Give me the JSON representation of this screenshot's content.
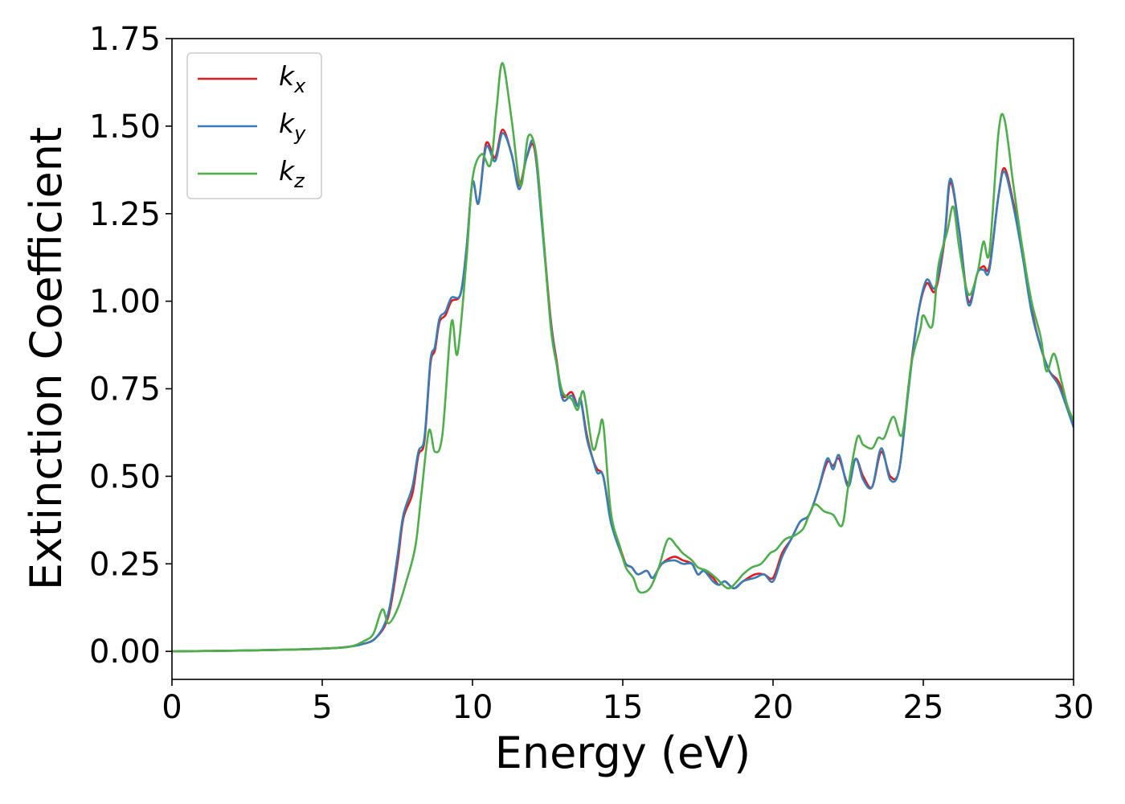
{
  "chart_data": {
    "type": "line",
    "xlabel": "Energy (eV)",
    "ylabel": "Extinction Coefficient",
    "xlim": [
      0,
      30
    ],
    "ylim": [
      -0.08,
      1.75
    ],
    "xticks": [
      0,
      5,
      10,
      15,
      20,
      25,
      30
    ],
    "xtick_labels": [
      "0",
      "5",
      "10",
      "15",
      "20",
      "25",
      "30"
    ],
    "yticks": [
      0.0,
      0.25,
      0.5,
      0.75,
      1.0,
      1.25,
      1.5,
      1.75
    ],
    "ytick_labels": [
      "0.00",
      "0.25",
      "0.50",
      "0.75",
      "1.00",
      "1.25",
      "1.50",
      "1.75"
    ],
    "grid": false,
    "legend_position": "top-left",
    "series": [
      {
        "name": "k_x",
        "label_base": "k",
        "label_sub": "x",
        "color": "#e41a1c",
        "points": [
          [
            0,
            0.0
          ],
          [
            2,
            0.002
          ],
          [
            4,
            0.005
          ],
          [
            5.5,
            0.01
          ],
          [
            6.3,
            0.02
          ],
          [
            6.8,
            0.04
          ],
          [
            7.2,
            0.1
          ],
          [
            7.5,
            0.25
          ],
          [
            7.7,
            0.38
          ],
          [
            8.0,
            0.45
          ],
          [
            8.2,
            0.56
          ],
          [
            8.4,
            0.6
          ],
          [
            8.6,
            0.82
          ],
          [
            8.75,
            0.86
          ],
          [
            8.9,
            0.94
          ],
          [
            9.1,
            0.96
          ],
          [
            9.3,
            1.0
          ],
          [
            9.6,
            1.02
          ],
          [
            9.8,
            1.15
          ],
          [
            10.0,
            1.34
          ],
          [
            10.2,
            1.28
          ],
          [
            10.45,
            1.45
          ],
          [
            10.75,
            1.41
          ],
          [
            11.0,
            1.49
          ],
          [
            11.3,
            1.42
          ],
          [
            11.55,
            1.33
          ],
          [
            11.8,
            1.41
          ],
          [
            12.05,
            1.44
          ],
          [
            12.3,
            1.24
          ],
          [
            12.6,
            0.95
          ],
          [
            12.8,
            0.83
          ],
          [
            13.0,
            0.73
          ],
          [
            13.3,
            0.74
          ],
          [
            13.5,
            0.7
          ],
          [
            13.6,
            0.72
          ],
          [
            13.8,
            0.62
          ],
          [
            14.0,
            0.55
          ],
          [
            14.15,
            0.52
          ],
          [
            14.35,
            0.5
          ],
          [
            14.6,
            0.38
          ],
          [
            14.9,
            0.3
          ],
          [
            15.1,
            0.25
          ],
          [
            15.3,
            0.24
          ],
          [
            15.5,
            0.22
          ],
          [
            15.8,
            0.23
          ],
          [
            16.0,
            0.21
          ],
          [
            16.3,
            0.25
          ],
          [
            16.7,
            0.27
          ],
          [
            17.0,
            0.26
          ],
          [
            17.3,
            0.25
          ],
          [
            17.5,
            0.22
          ],
          [
            17.7,
            0.23
          ],
          [
            18.0,
            0.21
          ],
          [
            18.2,
            0.19
          ],
          [
            18.4,
            0.2
          ],
          [
            18.7,
            0.18
          ],
          [
            19.0,
            0.2
          ],
          [
            19.4,
            0.22
          ],
          [
            19.7,
            0.22
          ],
          [
            20.0,
            0.21
          ],
          [
            20.3,
            0.28
          ],
          [
            20.6,
            0.32
          ],
          [
            20.9,
            0.37
          ],
          [
            21.2,
            0.39
          ],
          [
            21.5,
            0.46
          ],
          [
            21.8,
            0.54
          ],
          [
            22.0,
            0.53
          ],
          [
            22.2,
            0.55
          ],
          [
            22.5,
            0.48
          ],
          [
            22.75,
            0.55
          ],
          [
            23.0,
            0.5
          ],
          [
            23.3,
            0.47
          ],
          [
            23.6,
            0.57
          ],
          [
            23.9,
            0.5
          ],
          [
            24.2,
            0.52
          ],
          [
            24.5,
            0.75
          ],
          [
            24.8,
            0.95
          ],
          [
            25.1,
            1.05
          ],
          [
            25.4,
            1.03
          ],
          [
            25.7,
            1.17
          ],
          [
            25.9,
            1.34
          ],
          [
            26.2,
            1.2
          ],
          [
            26.5,
            1.0
          ],
          [
            26.8,
            1.08
          ],
          [
            27.0,
            1.1
          ],
          [
            27.2,
            1.1
          ],
          [
            27.5,
            1.3
          ],
          [
            27.7,
            1.38
          ],
          [
            28.0,
            1.28
          ],
          [
            28.3,
            1.15
          ],
          [
            28.6,
            0.98
          ],
          [
            28.9,
            0.87
          ],
          [
            29.2,
            0.8
          ],
          [
            29.5,
            0.77
          ],
          [
            29.8,
            0.7
          ],
          [
            30.0,
            0.64
          ]
        ]
      },
      {
        "name": "k_y",
        "label_base": "k",
        "label_sub": "y",
        "color": "#377eb8",
        "points": [
          [
            0,
            0.0
          ],
          [
            2,
            0.002
          ],
          [
            4,
            0.005
          ],
          [
            5.5,
            0.01
          ],
          [
            6.3,
            0.02
          ],
          [
            6.8,
            0.04
          ],
          [
            7.2,
            0.11
          ],
          [
            7.5,
            0.27
          ],
          [
            7.7,
            0.39
          ],
          [
            8.0,
            0.47
          ],
          [
            8.2,
            0.57
          ],
          [
            8.4,
            0.61
          ],
          [
            8.6,
            0.83
          ],
          [
            8.75,
            0.87
          ],
          [
            8.9,
            0.95
          ],
          [
            9.1,
            0.97
          ],
          [
            9.3,
            1.01
          ],
          [
            9.6,
            1.02
          ],
          [
            9.8,
            1.15
          ],
          [
            10.0,
            1.34
          ],
          [
            10.2,
            1.28
          ],
          [
            10.45,
            1.44
          ],
          [
            10.75,
            1.4
          ],
          [
            11.0,
            1.48
          ],
          [
            11.3,
            1.42
          ],
          [
            11.55,
            1.32
          ],
          [
            11.8,
            1.41
          ],
          [
            12.05,
            1.45
          ],
          [
            12.3,
            1.23
          ],
          [
            12.6,
            0.94
          ],
          [
            12.8,
            0.82
          ],
          [
            13.0,
            0.72
          ],
          [
            13.3,
            0.73
          ],
          [
            13.5,
            0.7
          ],
          [
            13.6,
            0.72
          ],
          [
            13.8,
            0.61
          ],
          [
            14.0,
            0.55
          ],
          [
            14.15,
            0.51
          ],
          [
            14.35,
            0.5
          ],
          [
            14.6,
            0.37
          ],
          [
            14.9,
            0.29
          ],
          [
            15.1,
            0.25
          ],
          [
            15.3,
            0.24
          ],
          [
            15.5,
            0.22
          ],
          [
            15.8,
            0.23
          ],
          [
            16.0,
            0.21
          ],
          [
            16.3,
            0.25
          ],
          [
            16.7,
            0.26
          ],
          [
            17.0,
            0.25
          ],
          [
            17.3,
            0.25
          ],
          [
            17.5,
            0.22
          ],
          [
            17.7,
            0.23
          ],
          [
            18.0,
            0.2
          ],
          [
            18.2,
            0.19
          ],
          [
            18.4,
            0.2
          ],
          [
            18.7,
            0.18
          ],
          [
            19.0,
            0.2
          ],
          [
            19.4,
            0.21
          ],
          [
            19.7,
            0.22
          ],
          [
            20.0,
            0.2
          ],
          [
            20.3,
            0.27
          ],
          [
            20.6,
            0.32
          ],
          [
            20.9,
            0.37
          ],
          [
            21.2,
            0.39
          ],
          [
            21.5,
            0.46
          ],
          [
            21.8,
            0.55
          ],
          [
            22.0,
            0.52
          ],
          [
            22.2,
            0.56
          ],
          [
            22.5,
            0.47
          ],
          [
            22.75,
            0.55
          ],
          [
            23.0,
            0.49
          ],
          [
            23.3,
            0.47
          ],
          [
            23.6,
            0.58
          ],
          [
            23.9,
            0.49
          ],
          [
            24.2,
            0.52
          ],
          [
            24.5,
            0.74
          ],
          [
            24.8,
            0.95
          ],
          [
            25.1,
            1.06
          ],
          [
            25.4,
            1.04
          ],
          [
            25.7,
            1.18
          ],
          [
            25.9,
            1.35
          ],
          [
            26.2,
            1.2
          ],
          [
            26.5,
            0.99
          ],
          [
            26.8,
            1.08
          ],
          [
            27.0,
            1.09
          ],
          [
            27.2,
            1.09
          ],
          [
            27.5,
            1.3
          ],
          [
            27.7,
            1.37
          ],
          [
            28.0,
            1.27
          ],
          [
            28.3,
            1.13
          ],
          [
            28.6,
            0.97
          ],
          [
            28.9,
            0.87
          ],
          [
            29.2,
            0.8
          ],
          [
            29.5,
            0.76
          ],
          [
            29.8,
            0.69
          ],
          [
            30.0,
            0.64
          ]
        ]
      },
      {
        "name": "k_z",
        "label_base": "k",
        "label_sub": "z",
        "color": "#4daf4a",
        "points": [
          [
            0,
            0.0
          ],
          [
            2,
            0.002
          ],
          [
            4,
            0.005
          ],
          [
            5.5,
            0.01
          ],
          [
            6.0,
            0.015
          ],
          [
            6.4,
            0.03
          ],
          [
            6.7,
            0.05
          ],
          [
            7.0,
            0.12
          ],
          [
            7.2,
            0.08
          ],
          [
            7.5,
            0.12
          ],
          [
            7.8,
            0.2
          ],
          [
            8.1,
            0.3
          ],
          [
            8.3,
            0.45
          ],
          [
            8.55,
            0.63
          ],
          [
            8.75,
            0.57
          ],
          [
            9.0,
            0.62
          ],
          [
            9.3,
            0.94
          ],
          [
            9.5,
            0.85
          ],
          [
            9.8,
            1.12
          ],
          [
            10.0,
            1.35
          ],
          [
            10.3,
            1.42
          ],
          [
            10.6,
            1.39
          ],
          [
            10.8,
            1.55
          ],
          [
            11.0,
            1.68
          ],
          [
            11.3,
            1.52
          ],
          [
            11.6,
            1.33
          ],
          [
            11.85,
            1.47
          ],
          [
            12.1,
            1.43
          ],
          [
            12.3,
            1.25
          ],
          [
            12.6,
            0.93
          ],
          [
            12.8,
            0.82
          ],
          [
            13.0,
            0.74
          ],
          [
            13.3,
            0.72
          ],
          [
            13.5,
            0.69
          ],
          [
            13.7,
            0.74
          ],
          [
            14.0,
            0.58
          ],
          [
            14.2,
            0.62
          ],
          [
            14.35,
            0.65
          ],
          [
            14.6,
            0.4
          ],
          [
            14.9,
            0.3
          ],
          [
            15.1,
            0.24
          ],
          [
            15.35,
            0.21
          ],
          [
            15.55,
            0.17
          ],
          [
            15.9,
            0.18
          ],
          [
            16.2,
            0.24
          ],
          [
            16.5,
            0.32
          ],
          [
            16.8,
            0.3
          ],
          [
            17.0,
            0.28
          ],
          [
            17.3,
            0.26
          ],
          [
            17.5,
            0.24
          ],
          [
            17.8,
            0.23
          ],
          [
            18.1,
            0.21
          ],
          [
            18.5,
            0.18
          ],
          [
            18.8,
            0.2
          ],
          [
            19.0,
            0.22
          ],
          [
            19.3,
            0.24
          ],
          [
            19.6,
            0.25
          ],
          [
            19.9,
            0.28
          ],
          [
            20.1,
            0.29
          ],
          [
            20.4,
            0.32
          ],
          [
            20.7,
            0.33
          ],
          [
            21.0,
            0.35
          ],
          [
            21.2,
            0.39
          ],
          [
            21.4,
            0.42
          ],
          [
            21.7,
            0.4
          ],
          [
            22.0,
            0.39
          ],
          [
            22.3,
            0.36
          ],
          [
            22.5,
            0.47
          ],
          [
            22.8,
            0.61
          ],
          [
            23.0,
            0.59
          ],
          [
            23.3,
            0.58
          ],
          [
            23.5,
            0.61
          ],
          [
            23.7,
            0.61
          ],
          [
            24.0,
            0.67
          ],
          [
            24.3,
            0.62
          ],
          [
            24.6,
            0.82
          ],
          [
            24.9,
            0.92
          ],
          [
            25.0,
            0.96
          ],
          [
            25.3,
            0.93
          ],
          [
            25.5,
            1.1
          ],
          [
            25.8,
            1.2
          ],
          [
            26.0,
            1.27
          ],
          [
            26.2,
            1.15
          ],
          [
            26.5,
            1.02
          ],
          [
            26.8,
            1.08
          ],
          [
            27.0,
            1.17
          ],
          [
            27.2,
            1.14
          ],
          [
            27.5,
            1.48
          ],
          [
            27.7,
            1.52
          ],
          [
            28.0,
            1.33
          ],
          [
            28.3,
            1.15
          ],
          [
            28.6,
            1.0
          ],
          [
            28.9,
            0.9
          ],
          [
            29.1,
            0.8
          ],
          [
            29.35,
            0.85
          ],
          [
            29.6,
            0.77
          ],
          [
            29.8,
            0.7
          ],
          [
            30.0,
            0.66
          ]
        ]
      }
    ]
  }
}
